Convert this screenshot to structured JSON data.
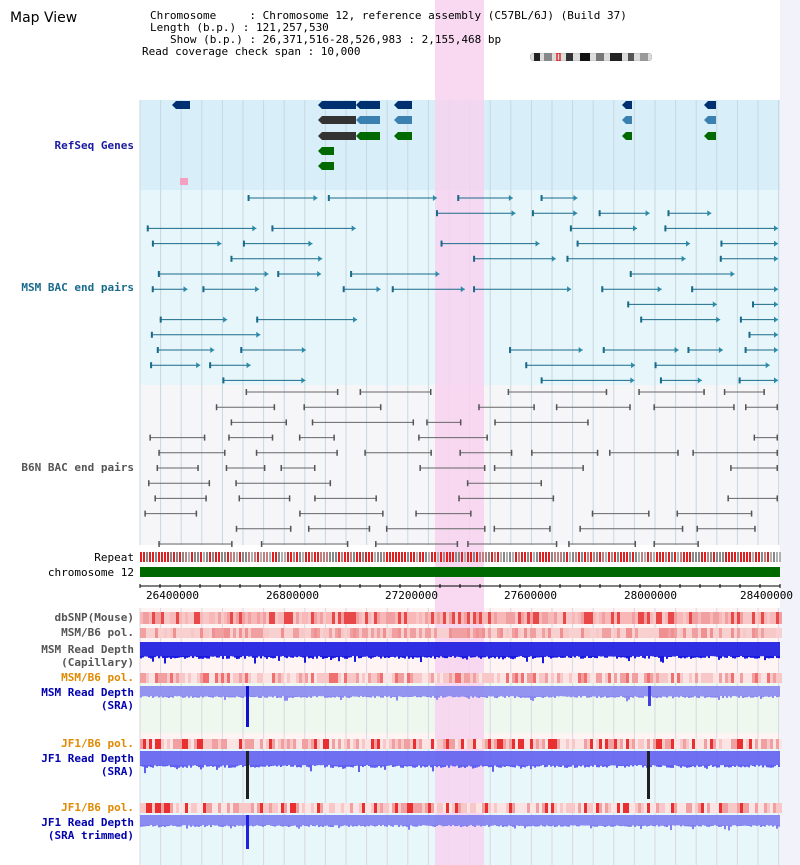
{
  "header": {
    "view_title": "Map View",
    "chromosome_line": "Chromosome     : Chromosome 12, reference assembly (C57BL/6J) (Build 37)",
    "length_line": "Length (b.p.) : 121,257,530",
    "show_line": "Show (b.p.) : 26,371,516-28,526,983 : 2,155,468 bp",
    "coverage_line": "Read coverage check span : 10,000"
  },
  "tracks": {
    "refseq_genes": "RefSeq Genes",
    "msm_bac": "MSM BAC end pairs",
    "b6n_bac": "B6N BAC end pairs",
    "repeat": "Repeat",
    "chromosome": "chromosome 12",
    "dbsnp": "dbSNP(Mouse)",
    "msm_b6_pol_1": "MSM/B6 pol.",
    "msm_read_depth_cap_1": "MSM Read Depth",
    "msm_read_depth_cap_2": "(Capillary)",
    "msm_b6_pol_2": "MSM/B6 pol.",
    "msm_read_depth_sra_1": "MSM Read Depth",
    "msm_read_depth_sra_2": "(SRA)",
    "jf1_b6_pol_1": "JF1/B6 pol.",
    "jf1_read_depth_sra_1": "JF1 Read Depth",
    "jf1_read_depth_sra_2": "(SRA)",
    "jf1_b6_pol_2": "JF1/B6 pol.",
    "jf1_read_depth_trim_1": "JF1 Read Depth",
    "jf1_read_depth_trim_2": "(SRA trimmed)"
  },
  "ruler": {
    "ticks": [
      "26400000",
      "26800000",
      "27200000",
      "27600000",
      "28000000",
      "28400000"
    ]
  },
  "colors": {
    "refseq_label": "#1a1aa0",
    "msm_bac_label": "#1a6a8a",
    "b6n_bac_label": "#555555",
    "pol_orange": "#e08a00",
    "depth_blue": "#0000b0",
    "highlight": "#f7d2ee",
    "chromosome_bar": "#006a00"
  }
}
